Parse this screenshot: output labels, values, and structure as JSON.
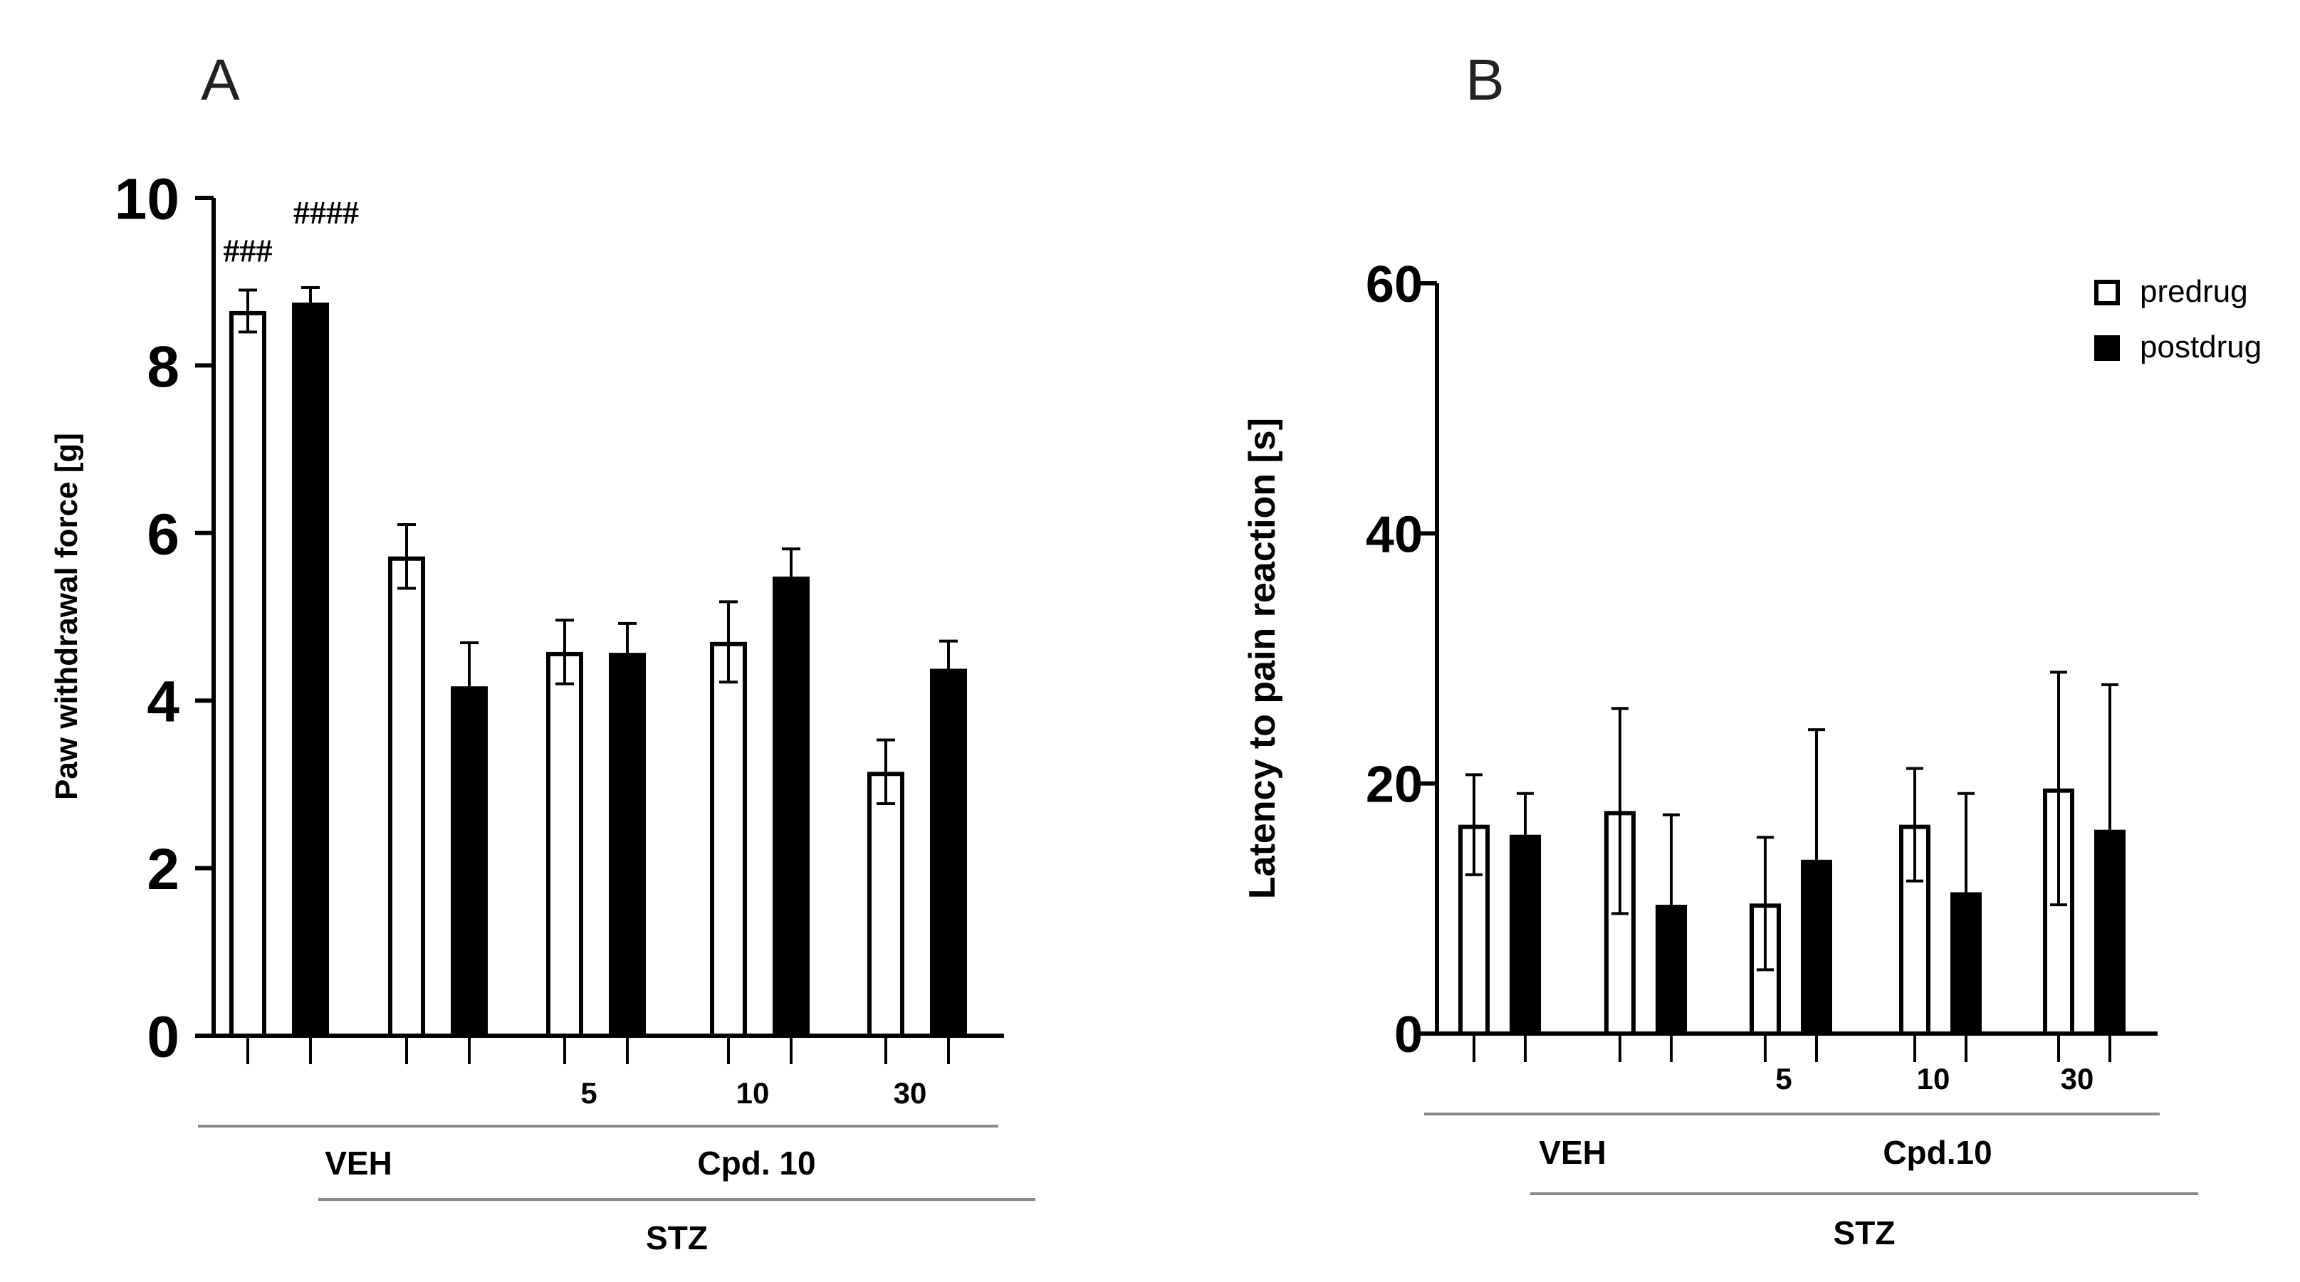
{
  "figure": {
    "panel_labels": [
      "A",
      "B"
    ]
  },
  "legend": {
    "predrug": "predrug",
    "postdrug": "postdrug"
  },
  "chart_data": [
    {
      "panel": "A",
      "type": "bar",
      "title": "",
      "xlabel": "",
      "ylabel": "Paw withdrawal force [g]",
      "ylim": [
        0,
        10
      ],
      "yticks": [
        0,
        2,
        4,
        6,
        8,
        10
      ],
      "series": [
        {
          "name": "predrug",
          "fill": "#ffffff",
          "values": [
            8.65,
            5.72,
            4.58,
            4.7,
            3.15
          ],
          "errors": [
            0.25,
            0.38,
            0.38,
            0.48,
            0.38
          ]
        },
        {
          "name": "postdrug",
          "fill": "#000000",
          "values": [
            8.75,
            4.17,
            4.57,
            5.48,
            4.38
          ],
          "errors": [
            0.18,
            0.52,
            0.35,
            0.33,
            0.33
          ]
        }
      ],
      "dose_labels": [
        "",
        "",
        "5",
        "10",
        "30"
      ],
      "annotations": [
        {
          "text": "###",
          "group": 0,
          "series": 0
        },
        {
          "text": "####",
          "group": 0,
          "series": 1
        }
      ],
      "group_brackets": [
        {
          "label": "VEH",
          "from_group": 0,
          "to_group": 1,
          "level": 1
        },
        {
          "label": "Cpd. 10",
          "from_group": 2,
          "to_group": 4,
          "level": 1
        },
        {
          "label": "STZ",
          "from_group": 1,
          "to_group": 4,
          "level": 2
        }
      ]
    },
    {
      "panel": "B",
      "type": "bar",
      "title": "",
      "xlabel": "",
      "ylabel": "Latency to pain reaction [s]",
      "ylim": [
        0,
        60
      ],
      "yticks": [
        0,
        20,
        40,
        60
      ],
      "series": [
        {
          "name": "predrug",
          "fill": "#ffffff",
          "values": [
            16.7,
            17.8,
            10.4,
            16.7,
            19.6
          ],
          "errors": [
            4.0,
            8.2,
            5.3,
            4.5,
            9.3
          ]
        },
        {
          "name": "postdrug",
          "fill": "#000000",
          "values": [
            15.9,
            10.3,
            13.9,
            11.3,
            16.3
          ],
          "errors": [
            3.3,
            7.2,
            10.4,
            7.9,
            11.6
          ]
        }
      ],
      "dose_labels": [
        "",
        "",
        "5",
        "10",
        "30"
      ],
      "annotations": [],
      "group_brackets": [
        {
          "label": "VEH",
          "from_group": 0,
          "to_group": 1,
          "level": 1
        },
        {
          "label": "Cpd.10",
          "from_group": 2,
          "to_group": 4,
          "level": 1
        },
        {
          "label": "STZ",
          "from_group": 1,
          "to_group": 4,
          "level": 2
        }
      ]
    }
  ]
}
